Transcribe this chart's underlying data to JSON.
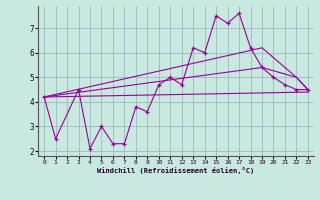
{
  "background_color": "#c8e8e0",
  "grid_color": "#99bbbb",
  "line_color": "#990099",
  "xlabel": "Windchill (Refroidissement éolien,°C)",
  "xlim": [
    -0.5,
    23.5
  ],
  "ylim": [
    1.8,
    7.9
  ],
  "yticks": [
    2,
    3,
    4,
    5,
    6,
    7
  ],
  "xticks": [
    0,
    1,
    2,
    3,
    4,
    5,
    6,
    7,
    8,
    9,
    10,
    11,
    12,
    13,
    14,
    15,
    16,
    17,
    18,
    19,
    20,
    21,
    22,
    23
  ],
  "series1_x": [
    0,
    1,
    3,
    4,
    5,
    6,
    7,
    8,
    9,
    10,
    11,
    12,
    13,
    14,
    15,
    16,
    17,
    18,
    19,
    20,
    21,
    22,
    23
  ],
  "series1_y": [
    4.2,
    2.5,
    4.5,
    2.1,
    3.0,
    2.3,
    2.3,
    3.8,
    3.6,
    4.7,
    5.0,
    4.7,
    6.2,
    6.0,
    7.5,
    7.2,
    7.6,
    6.2,
    5.4,
    5.0,
    4.7,
    4.5,
    4.5
  ],
  "series2_x": [
    0,
    23
  ],
  "series2_y": [
    4.2,
    4.4
  ],
  "series3_x": [
    0,
    19,
    22,
    23
  ],
  "series3_y": [
    4.2,
    5.4,
    5.0,
    4.5
  ],
  "series4_x": [
    0,
    19,
    22,
    23
  ],
  "series4_y": [
    4.2,
    6.2,
    5.0,
    4.5
  ]
}
